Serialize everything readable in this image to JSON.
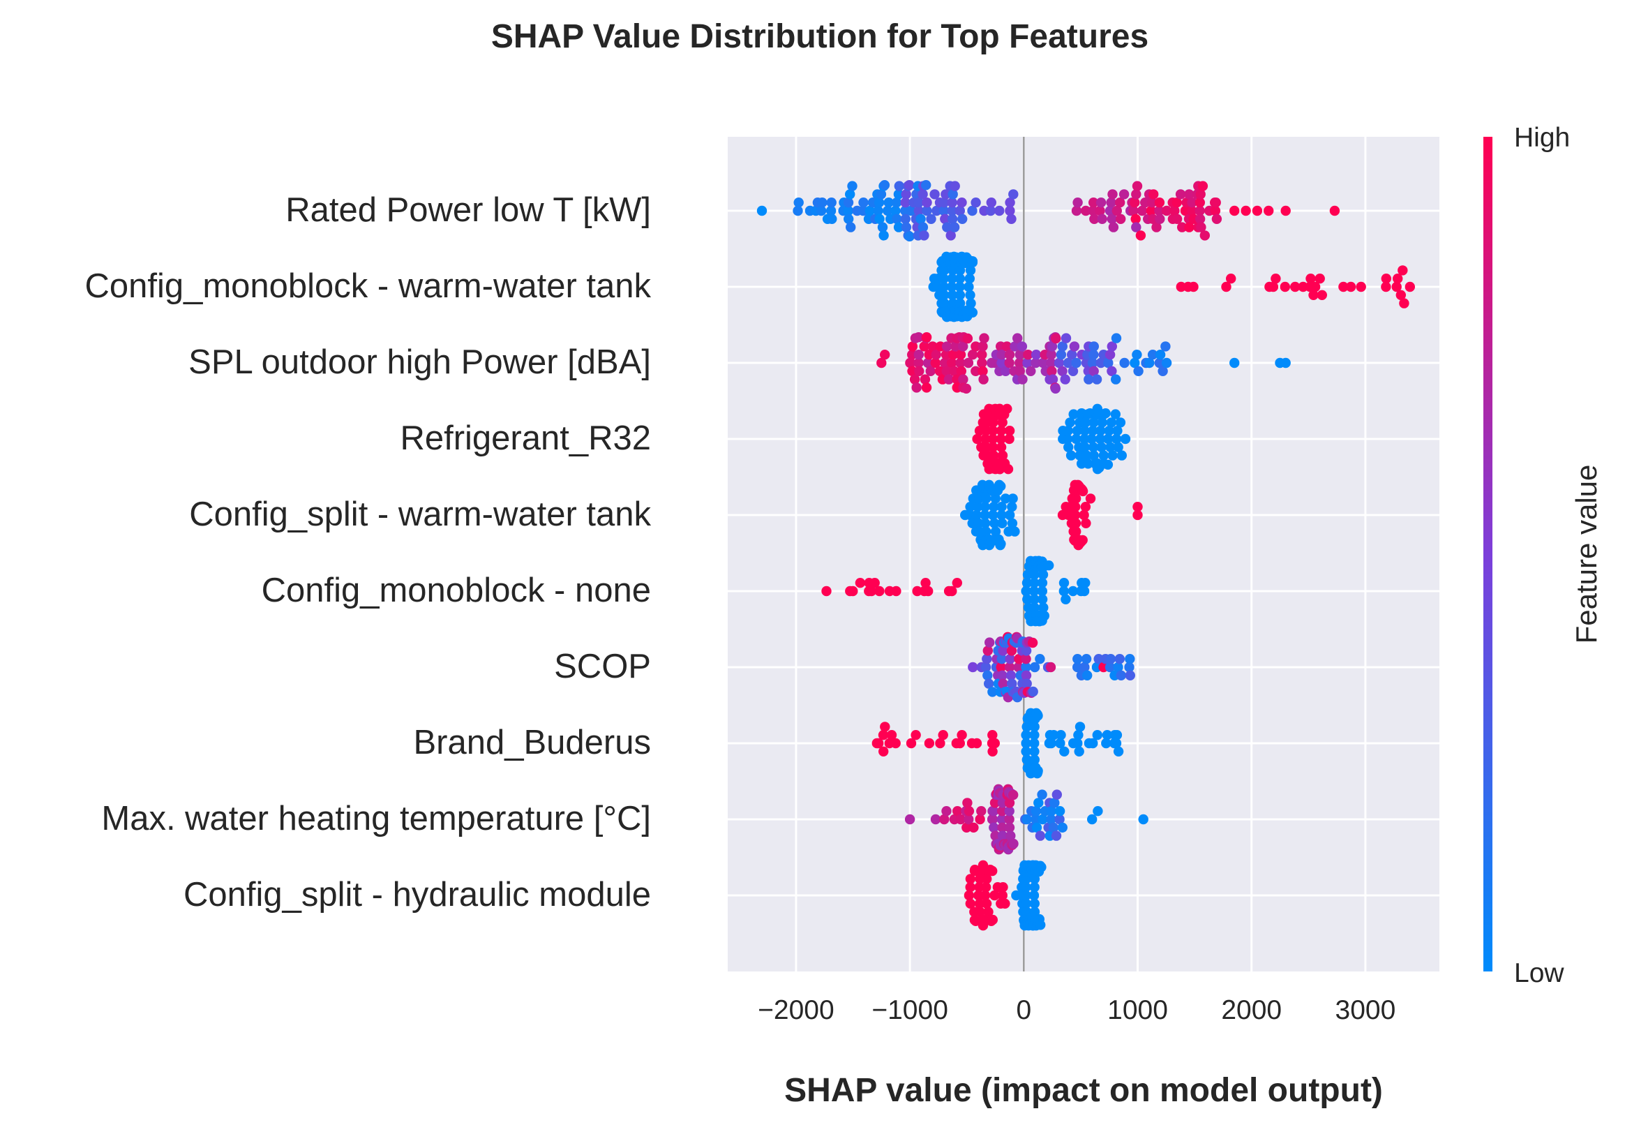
{
  "chart_data": {
    "type": "scatter",
    "subtype": "shap-beeswarm-summary",
    "title": "SHAP Value Distribution for Top Features",
    "xlabel": "SHAP value (impact on model output)",
    "xlim": [
      -2600,
      3650
    ],
    "xticks": [
      -2000,
      -1000,
      0,
      1000,
      2000,
      3000
    ],
    "xtick_labels": [
      "−2000",
      "−1000",
      "0",
      "1000",
      "2000",
      "3000"
    ],
    "grid": true,
    "zero_line": 0,
    "colorbar": {
      "title": "Feature value",
      "high_label": "High",
      "low_label": "Low",
      "high_color": "#ff0052",
      "low_color": "#008bfb"
    },
    "features": [
      {
        "name": "Rated Power low T [kW]",
        "clusters": [
          {
            "range": [
              -2000,
              -900
            ],
            "count": 48,
            "fv": [
              0.0,
              0.15
            ]
          },
          {
            "range": [
              -1100,
              -400
            ],
            "count": 44,
            "fv": [
              0.15,
              0.45
            ]
          },
          {
            "range": [
              -400,
              0
            ],
            "count": 8,
            "fv": [
              0.35,
              0.5
            ]
          },
          {
            "range": [
              450,
              1000
            ],
            "count": 22,
            "fv": [
              0.65,
              0.85
            ]
          },
          {
            "range": [
              950,
              1700
            ],
            "count": 48,
            "fv": [
              0.8,
              1.0
            ]
          }
        ],
        "points": [
          [
            -2300,
            0.0
          ],
          [
            1850,
            1.0
          ],
          [
            1950,
            1.0
          ],
          [
            2050,
            1.0
          ],
          [
            2150,
            1.0
          ],
          [
            2300,
            1.0
          ],
          [
            2730,
            1.0
          ]
        ]
      },
      {
        "name": "Config_monoblock - warm-water tank",
        "clusters": [
          {
            "range": [
              -1000,
              -450
            ],
            "count": 110,
            "fv": [
              0.0,
              0.0
            ],
            "center": -600,
            "spread": 150
          },
          {
            "range": [
              1350,
              3400
            ],
            "count": 28,
            "fv": [
              1.0,
              1.0
            ]
          }
        ],
        "points": []
      },
      {
        "name": "SPL outdoor high Power [dBA]",
        "clusters": [
          {
            "range": [
              -1000,
              -300
            ],
            "count": 60,
            "fv": [
              0.75,
              1.0
            ]
          },
          {
            "range": [
              -300,
              300
            ],
            "count": 40,
            "fv": [
              0.5,
              0.9
            ]
          },
          {
            "range": [
              300,
              800
            ],
            "count": 28,
            "fv": [
              0.2,
              0.6
            ]
          },
          {
            "range": [
              700,
              1300
            ],
            "count": 14,
            "fv": [
              0.0,
              0.2
            ]
          }
        ],
        "points": [
          [
            -1250,
            0.95
          ],
          [
            -1220,
            0.95
          ],
          [
            1850,
            0.0
          ],
          [
            2250,
            0.0
          ],
          [
            2300,
            0.0
          ]
        ]
      },
      {
        "name": "Refrigerant_R32",
        "clusters": [
          {
            "range": [
              -450,
              50
            ],
            "count": 90,
            "fv": [
              1.0,
              1.0
            ],
            "center": -250,
            "spread": 110
          },
          {
            "range": [
              300,
              1450
            ],
            "count": 60,
            "fv": [
              0.0,
              0.0
            ],
            "center": 600,
            "spread": 250
          }
        ],
        "points": []
      },
      {
        "name": "Config_split - warm-water tank",
        "clusters": [
          {
            "range": [
              -700,
              -20
            ],
            "count": 70,
            "fv": [
              0.0,
              0.0
            ],
            "center": -300,
            "spread": 170
          },
          {
            "range": [
              270,
              700
            ],
            "count": 40,
            "fv": [
              1.0,
              1.0
            ],
            "center": 450,
            "spread": 100
          }
        ],
        "points": [
          [
            1000,
            1.0
          ],
          [
            1000,
            1.0
          ]
        ]
      },
      {
        "name": "Config_monoblock - none",
        "clusters": [
          {
            "range": [
              20,
              350
            ],
            "count": 85,
            "fv": [
              0.0,
              0.0
            ],
            "center": 100,
            "spread": 80
          },
          {
            "range": [
              350,
              550
            ],
            "count": 8,
            "fv": [
              0.0,
              0.0
            ]
          },
          {
            "range": [
              -1750,
              -550
            ],
            "count": 18,
            "fv": [
              1.0,
              1.0
            ]
          }
        ],
        "points": []
      },
      {
        "name": "SCOP",
        "clusters": [
          {
            "range": [
              -650,
              400
            ],
            "count": 70,
            "fv": [
              0.0,
              1.0
            ],
            "center": -100,
            "spread": 280
          },
          {
            "range": [
              400,
              950
            ],
            "count": 18,
            "fv": [
              0.0,
              0.3
            ]
          }
        ],
        "points": [
          [
            700,
            1.0
          ]
        ]
      },
      {
        "name": "Brand_Buderus",
        "clusters": [
          {
            "range": [
              -1350,
              -250
            ],
            "count": 22,
            "fv": [
              1.0,
              1.0
            ]
          },
          {
            "range": [
              20,
              200
            ],
            "count": 50,
            "fv": [
              0.0,
              0.0
            ],
            "center": 70,
            "spread": 50
          },
          {
            "range": [
              200,
              850
            ],
            "count": 22,
            "fv": [
              0.0,
              0.0
            ]
          }
        ],
        "points": []
      },
      {
        "name": "Max. water heating temperature [°C]",
        "clusters": [
          {
            "range": [
              -350,
              0
            ],
            "count": 50,
            "fv": [
              0.6,
              0.9
            ],
            "center": -180,
            "spread": 90
          },
          {
            "range": [
              -800,
              -350
            ],
            "count": 14,
            "fv": [
              0.7,
              0.95
            ]
          },
          {
            "range": [
              0,
              350
            ],
            "count": 24,
            "fv": [
              0.0,
              0.4
            ]
          }
        ],
        "points": [
          [
            -1000,
            0.7
          ],
          [
            600,
            0.0
          ],
          [
            650,
            0.0
          ],
          [
            1050,
            0.0
          ]
        ]
      },
      {
        "name": "Config_split - hydraulic module",
        "clusters": [
          {
            "range": [
              -700,
              -150
            ],
            "count": 40,
            "fv": [
              1.0,
              1.0
            ],
            "center": -350,
            "spread": 150
          },
          {
            "range": [
              -100,
              350
            ],
            "count": 80,
            "fv": [
              0.0,
              0.0
            ],
            "center": 70,
            "spread": 100
          }
        ],
        "points": []
      }
    ]
  }
}
